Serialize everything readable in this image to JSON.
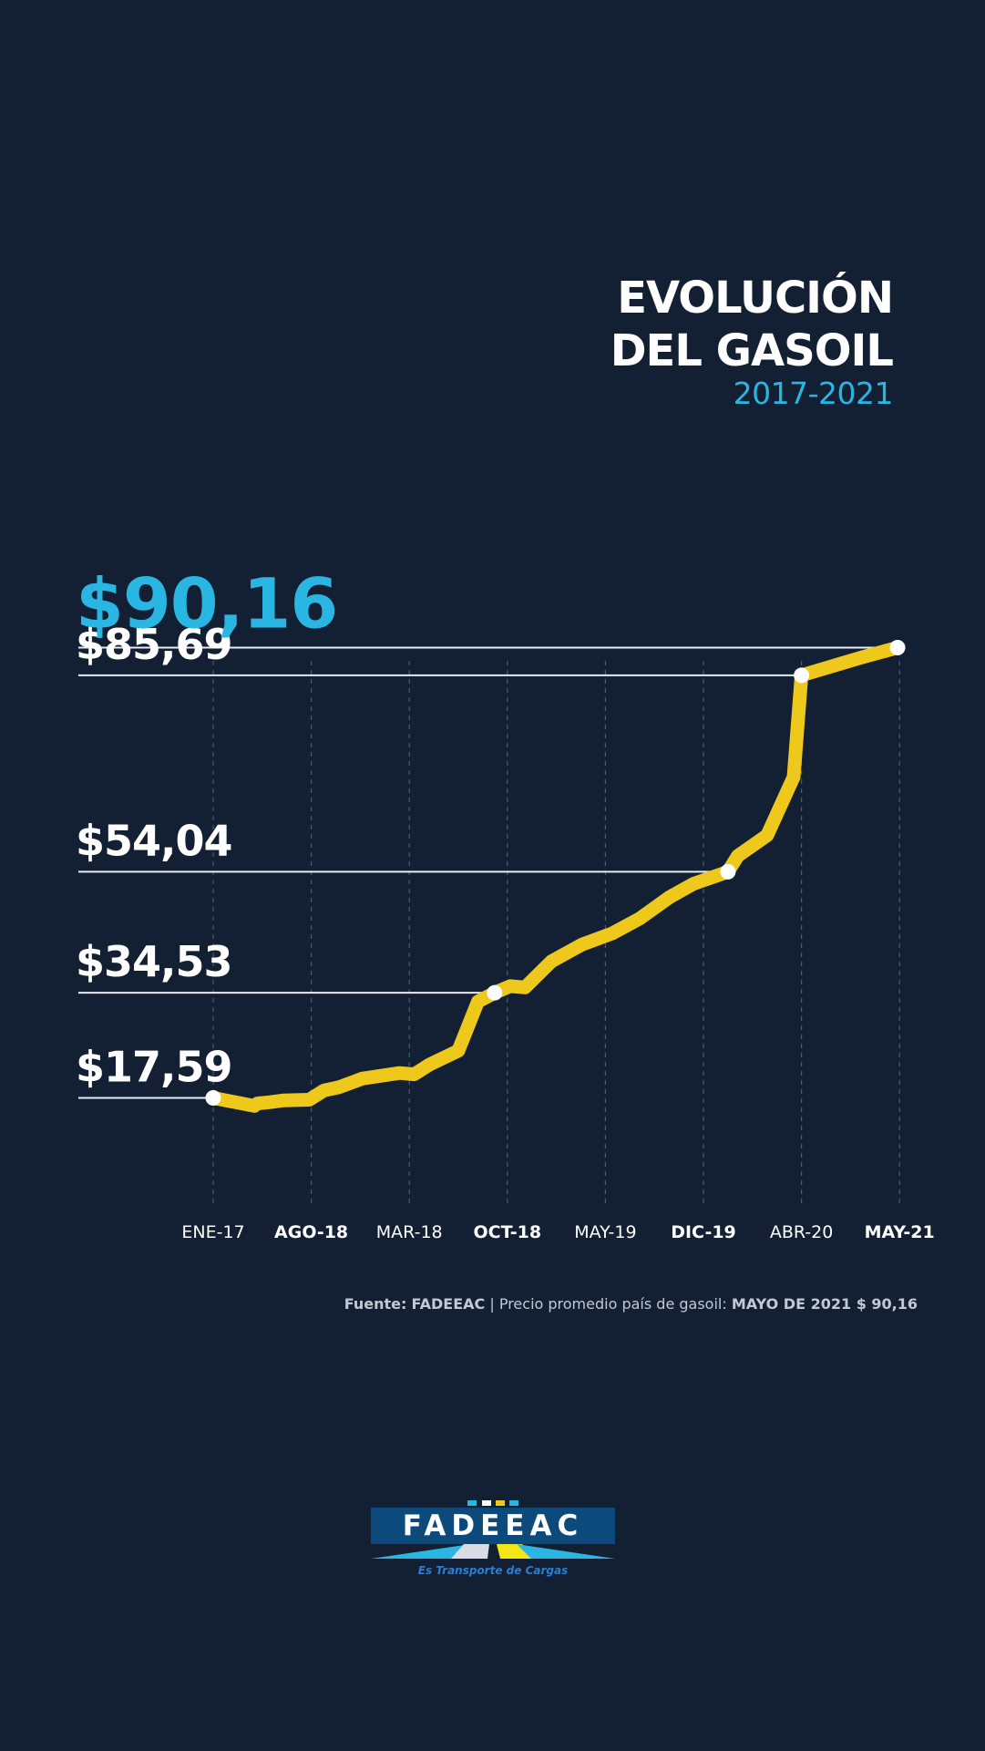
{
  "title_line1": "EVOLUCIÓN",
  "title_line2": "DEL GASOIL",
  "subtitle": "2017-2021",
  "source": {
    "label": "Fuente:",
    "org": "FADEEAC",
    "separator": "|",
    "desc": "Precio promedio país de gasoil:",
    "highlight": "MAYO DE 2021 $ 90,16"
  },
  "logo": {
    "name": "FADEEAC",
    "tagline": "Es Transporte de Cargas"
  },
  "colors": {
    "background": "#131f32",
    "line": "#eec81a",
    "accent": "#29b6e3",
    "text": "#ffffff"
  },
  "chart_data": {
    "type": "line",
    "ticks": [
      {
        "label": "ENE-17",
        "bold": false
      },
      {
        "label": "AGO-18",
        "bold": true
      },
      {
        "label": "MAR-18",
        "bold": false
      },
      {
        "label": "OCT-18",
        "bold": true
      },
      {
        "label": "MAY-19",
        "bold": false
      },
      {
        "label": "DIC-19",
        "bold": true
      },
      {
        "label": "ABR-20",
        "bold": false
      },
      {
        "label": "MAY-21",
        "bold": true
      }
    ],
    "ylim": [
      0,
      100
    ],
    "series": [
      {
        "values": [
          [
            0.0,
            17.59
          ],
          [
            0.42,
            16.3
          ],
          [
            0.45,
            16.7
          ],
          [
            0.58,
            16.9
          ],
          [
            0.72,
            17.2
          ],
          [
            0.98,
            17.3
          ],
          [
            1.13,
            18.8
          ],
          [
            1.28,
            19.3
          ],
          [
            1.52,
            20.7
          ],
          [
            1.73,
            21.2
          ],
          [
            1.9,
            21.6
          ],
          [
            2.05,
            21.4
          ],
          [
            2.21,
            23.0
          ],
          [
            2.5,
            25.2
          ],
          [
            2.7,
            33.1
          ],
          [
            2.87,
            34.53
          ],
          [
            3.03,
            35.6
          ],
          [
            3.18,
            35.4
          ],
          [
            3.45,
            39.6
          ],
          [
            3.76,
            42.3
          ],
          [
            4.07,
            44.1
          ],
          [
            4.35,
            46.5
          ],
          [
            4.65,
            49.9
          ],
          [
            4.9,
            52.1
          ],
          [
            5.25,
            54.04
          ],
          [
            5.35,
            56.6
          ],
          [
            5.65,
            59.9
          ],
          [
            5.92,
            69.3
          ],
          [
            6.0,
            85.69
          ],
          [
            6.62,
            88.6
          ],
          [
            6.98,
            90.16
          ]
        ]
      }
    ],
    "markers": [
      {
        "x": 0.0,
        "y": 17.59,
        "label": "$17,59",
        "highlight": false
      },
      {
        "x": 2.87,
        "y": 34.53,
        "label": "$34,53",
        "highlight": false
      },
      {
        "x": 5.25,
        "y": 54.04,
        "label": "$54,04",
        "highlight": false
      },
      {
        "x": 6.0,
        "y": 85.69,
        "label": "$85,69",
        "highlight": false
      },
      {
        "x": 6.98,
        "y": 90.16,
        "label": "$90,16",
        "highlight": true
      }
    ]
  }
}
